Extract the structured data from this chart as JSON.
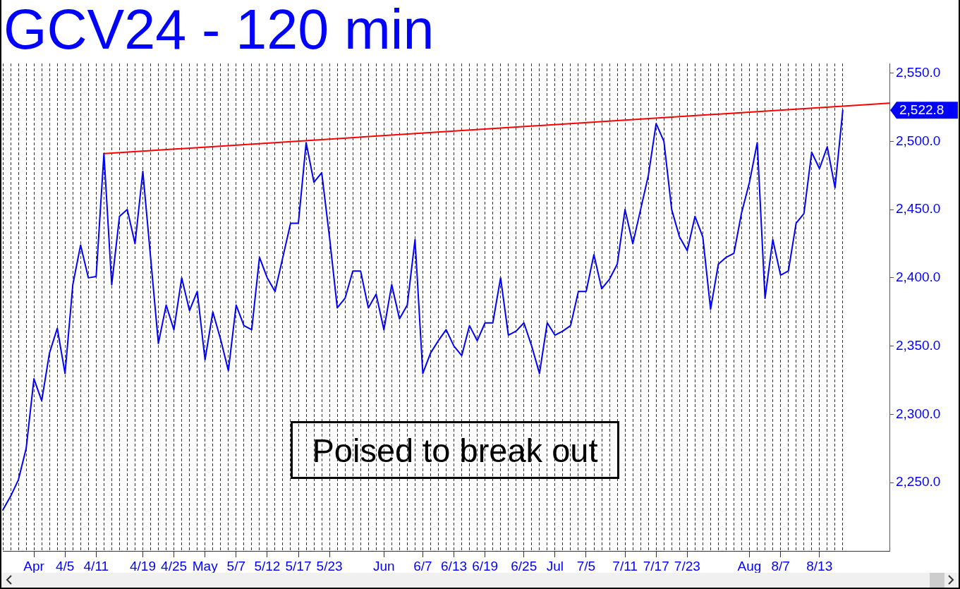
{
  "chart_data": {
    "type": "line",
    "title": "GCV24 - 120 min",
    "categories": [
      null,
      null,
      null,
      null,
      "Apr",
      null,
      null,
      null,
      "4/5",
      null,
      null,
      null,
      "4/11",
      null,
      null,
      null,
      null,
      null,
      "4/19",
      null,
      null,
      null,
      "4/25",
      null,
      null,
      null,
      "May",
      null,
      null,
      null,
      "5/7",
      null,
      null,
      null,
      "5/12",
      null,
      null,
      null,
      "5/17",
      null,
      null,
      null,
      "5/23",
      null,
      null,
      null,
      null,
      null,
      null,
      "Jun",
      null,
      null,
      null,
      null,
      "6/7",
      null,
      null,
      null,
      "6/13",
      null,
      null,
      null,
      "6/19",
      null,
      null,
      null,
      null,
      "6/25",
      null,
      null,
      null,
      "Jul",
      null,
      null,
      null,
      "7/5",
      null,
      null,
      null,
      null,
      "7/11",
      null,
      null,
      null,
      "7/17",
      null,
      null,
      null,
      "7/23",
      null,
      null,
      null,
      null,
      null,
      null,
      null,
      "Aug",
      null,
      null,
      null,
      "8/7",
      null,
      null,
      null,
      null,
      "8/13",
      null,
      null,
      null,
      null,
      null,
      null,
      null,
      null,
      null
    ],
    "series": [
      {
        "color": "#0000ff",
        "values": [
          2230,
          2240,
          2252,
          2275,
          2326,
          2310,
          2345,
          2363,
          2330,
          2395,
          2424,
          2400,
          2401,
          2491,
          2395,
          2445,
          2450,
          2425,
          2478,
          2415,
          2352,
          2380,
          2362,
          2400,
          2376,
          2390,
          2340,
          2375,
          2355,
          2332,
          2380,
          2365,
          2362,
          2415,
          2400,
          2390,
          2415,
          2440,
          2440,
          2499,
          2470,
          2477,
          2430,
          2378,
          2385,
          2405,
          2405,
          2378,
          2388,
          2362,
          2395,
          2370,
          2380,
          2428,
          2330,
          2345,
          2354,
          2362,
          2350,
          2343,
          2365,
          2354,
          2367,
          2367,
          2400,
          2358,
          2361,
          2367,
          2350,
          2330,
          2367,
          2358,
          2361,
          2365,
          2390,
          2390,
          2417,
          2392,
          2399,
          2410,
          2450,
          2425,
          2450,
          2475,
          2513,
          2500,
          2450,
          2430,
          2420,
          2445,
          2430,
          2377,
          2410,
          2415,
          2418,
          2448,
          2470,
          2499,
          2385,
          2428,
          2402,
          2405,
          2440,
          2447,
          2492,
          2480,
          2496,
          2466,
          2522.8,
          null,
          null,
          null,
          null,
          null,
          null
        ]
      },
      {
        "color": "#ff0000",
        "values": [
          null,
          null,
          null,
          null,
          null,
          null,
          null,
          null,
          null,
          null,
          null,
          null,
          null,
          2491,
          null,
          null,
          null,
          null,
          null,
          null,
          null,
          null,
          null,
          null,
          null,
          null,
          null,
          null,
          null,
          null,
          null,
          null,
          null,
          null,
          null,
          null,
          null,
          null,
          null,
          null,
          null,
          null,
          null,
          null,
          null,
          null,
          null,
          null,
          null,
          null,
          null,
          null,
          null,
          null,
          null,
          null,
          null,
          null,
          null,
          null,
          null,
          null,
          null,
          null,
          null,
          null,
          null,
          null,
          null,
          null,
          null,
          null,
          null,
          null,
          null,
          null,
          null,
          null,
          null,
          null,
          null,
          null,
          null,
          null,
          null,
          null,
          null,
          null,
          null,
          null,
          null,
          null,
          null,
          null,
          null,
          null,
          null,
          null,
          null,
          null,
          null,
          null,
          null,
          null,
          null,
          null,
          null,
          null,
          null,
          null,
          null,
          null,
          null,
          null,
          2528
        ]
      }
    ],
    "ylim": [
      2200,
      2557
    ],
    "yticks": [
      {
        "value": 2250,
        "label": "2,250.0"
      },
      {
        "value": 2300,
        "label": "2,300.0"
      },
      {
        "value": 2350,
        "label": "2,350.0"
      },
      {
        "value": 2400,
        "label": "2,400.0"
      },
      {
        "value": 2450,
        "label": "2,450.0"
      },
      {
        "value": 2500,
        "label": "2,500.0"
      },
      {
        "value": 2550,
        "label": "2,550.0"
      }
    ],
    "grid": "x",
    "annotations": [
      "Poised to break out",
      "2,522.8"
    ]
  }
}
